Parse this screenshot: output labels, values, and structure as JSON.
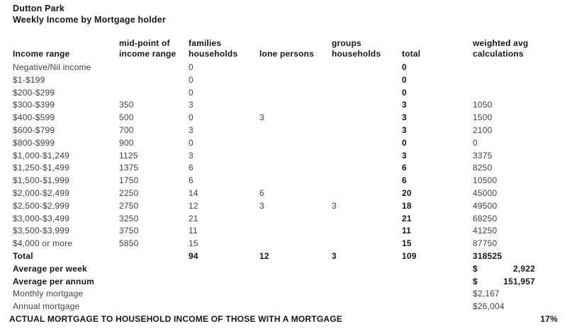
{
  "title": "Dutton Park",
  "subtitle": "Weekly Income by Mortgage holder",
  "table": {
    "columns": [
      {
        "line1": "",
        "line2": "Income range"
      },
      {
        "line1": "mid-point of",
        "line2": "income range"
      },
      {
        "line1": "families",
        "line2": "households"
      },
      {
        "line1": "",
        "line2": "lone persons"
      },
      {
        "line1": "groups",
        "line2": "households"
      },
      {
        "line1": "",
        "line2": "total"
      },
      {
        "line1": "weighted avg",
        "line2": "calculations"
      }
    ],
    "rows": [
      {
        "range": "Negative/Nil income",
        "mid": "",
        "fam": "0",
        "lone": "",
        "grp": "",
        "total": "0",
        "wavg": ""
      },
      {
        "range": "$1-$199",
        "mid": "",
        "fam": "0",
        "lone": "",
        "grp": "",
        "total": "0",
        "wavg": ""
      },
      {
        "range": "$200-$299",
        "mid": "",
        "fam": "0",
        "lone": "",
        "grp": "",
        "total": "0",
        "wavg": ""
      },
      {
        "range": "$300-$399",
        "mid": "350",
        "fam": "3",
        "lone": "",
        "grp": "",
        "total": "3",
        "wavg": "1050"
      },
      {
        "range": "$400-$599",
        "mid": "500",
        "fam": "0",
        "lone": "3",
        "grp": "",
        "total": "3",
        "wavg": "1500"
      },
      {
        "range": "$600-$799",
        "mid": "700",
        "fam": "3",
        "lone": "",
        "grp": "",
        "total": "3",
        "wavg": "2100"
      },
      {
        "range": "$800-$999",
        "mid": "900",
        "fam": "0",
        "lone": "",
        "grp": "",
        "total": "0",
        "wavg": "0"
      },
      {
        "range": "$1,000-$1,249",
        "mid": "1125",
        "fam": "3",
        "lone": "",
        "grp": "",
        "total": "3",
        "wavg": "3375"
      },
      {
        "range": "$1,250-$1,499",
        "mid": "1375",
        "fam": "6",
        "lone": "",
        "grp": "",
        "total": "6",
        "wavg": "8250"
      },
      {
        "range": "$1,500-$1,999",
        "mid": "1750",
        "fam": "6",
        "lone": "",
        "grp": "",
        "total": "6",
        "wavg": "10500"
      },
      {
        "range": "$2,000-$2,499",
        "mid": "2250",
        "fam": "14",
        "lone": "6",
        "grp": "",
        "total": "20",
        "wavg": "45000"
      },
      {
        "range": "$2,500-$2,999",
        "mid": "2750",
        "fam": "12",
        "lone": "3",
        "grp": "3",
        "total": "18",
        "wavg": "49500"
      },
      {
        "range": "$3,000-$3,499",
        "mid": "3250",
        "fam": "21",
        "lone": "",
        "grp": "",
        "total": "21",
        "wavg": "68250"
      },
      {
        "range": "$3,500-$3,999",
        "mid": "3750",
        "fam": "11",
        "lone": "",
        "grp": "",
        "total": "11",
        "wavg": "41250"
      },
      {
        "range": "$4,000 or more",
        "mid": "5850",
        "fam": "15",
        "lone": "",
        "grp": "",
        "total": "15",
        "wavg": "87750"
      }
    ],
    "total_row": {
      "range": "Total",
      "mid": "",
      "fam": "94",
      "lone": "12",
      "grp": "3",
      "total": "109",
      "wavg": "318525"
    },
    "summary": {
      "avg_week": {
        "label": "Average per week",
        "currency": "$",
        "amount": "2,922"
      },
      "avg_annum": {
        "label": "Average per annum",
        "currency": "$",
        "amount": "151,957"
      },
      "monthly_mortgage": {
        "label": "Monthly mortgage",
        "amount": "$2,167"
      },
      "annual_mortgage": {
        "label": "Annual mortgage",
        "amount": "$26,004"
      }
    },
    "footer": {
      "label": "ACTUAL MORTGAGE TO HOUSEHOLD INCOME OF THOSE WITH A MORTGAGE",
      "value": "17%"
    }
  }
}
